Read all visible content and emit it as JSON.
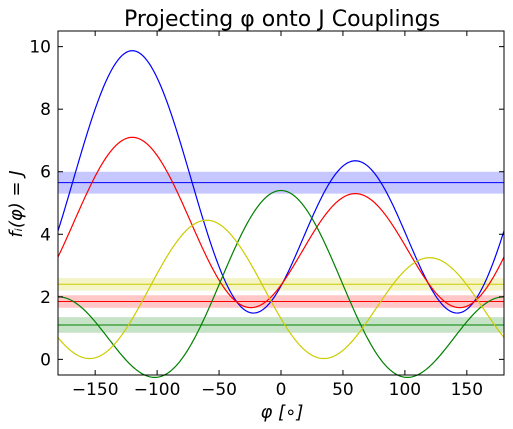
{
  "chart_data": {
    "type": "line",
    "title": "Projecting φ onto J Couplings",
    "xlabel": "φ [∘]",
    "ylabel": "fᵢ(φ) = J",
    "xlim": [
      -180,
      180
    ],
    "ylim": [
      -0.5,
      10.5
    ],
    "xticks": [
      -150,
      -100,
      -50,
      0,
      50,
      100,
      150
    ],
    "yticks": [
      0,
      2,
      4,
      6,
      8,
      10
    ],
    "grid": false,
    "legend": "none",
    "series": [
      {
        "color": "#0000ff",
        "formula": "A*cos^2(phi-60deg)+B*cos(phi-60deg)+C",
        "A": 6.51,
        "B": -1.76,
        "C": 1.6
      },
      {
        "color": "#ff0000",
        "formula": "A*cos^2(phi-60deg)+B*cos(phi-60deg)+C",
        "A": 4.5,
        "B": -0.9,
        "C": 1.7,
        "phase": 0
      },
      {
        "color": "#008000",
        "formula": "A*cos^2(phi-0deg)+B*cos(phi-0deg)+C",
        "A": 4.1,
        "B": 1.7,
        "C": -0.4
      },
      {
        "color": "#cccc00",
        "formula": "A*cos^2(phi+60deg)+B*cos(phi+60deg)+C",
        "A": 3.8,
        "B": 0.6,
        "C": 0.05
      }
    ],
    "bands": [
      {
        "color": "#0000ff",
        "value": 5.65,
        "lower": 5.3,
        "upper": 6.0
      },
      {
        "color": "#cccc00",
        "value": 2.4,
        "lower": 2.2,
        "upper": 2.6
      },
      {
        "color": "#ff0000",
        "value": 1.85,
        "lower": 1.65,
        "upper": 2.05
      },
      {
        "color": "#008000",
        "value": 1.1,
        "lower": 0.85,
        "upper": 1.35
      }
    ]
  }
}
